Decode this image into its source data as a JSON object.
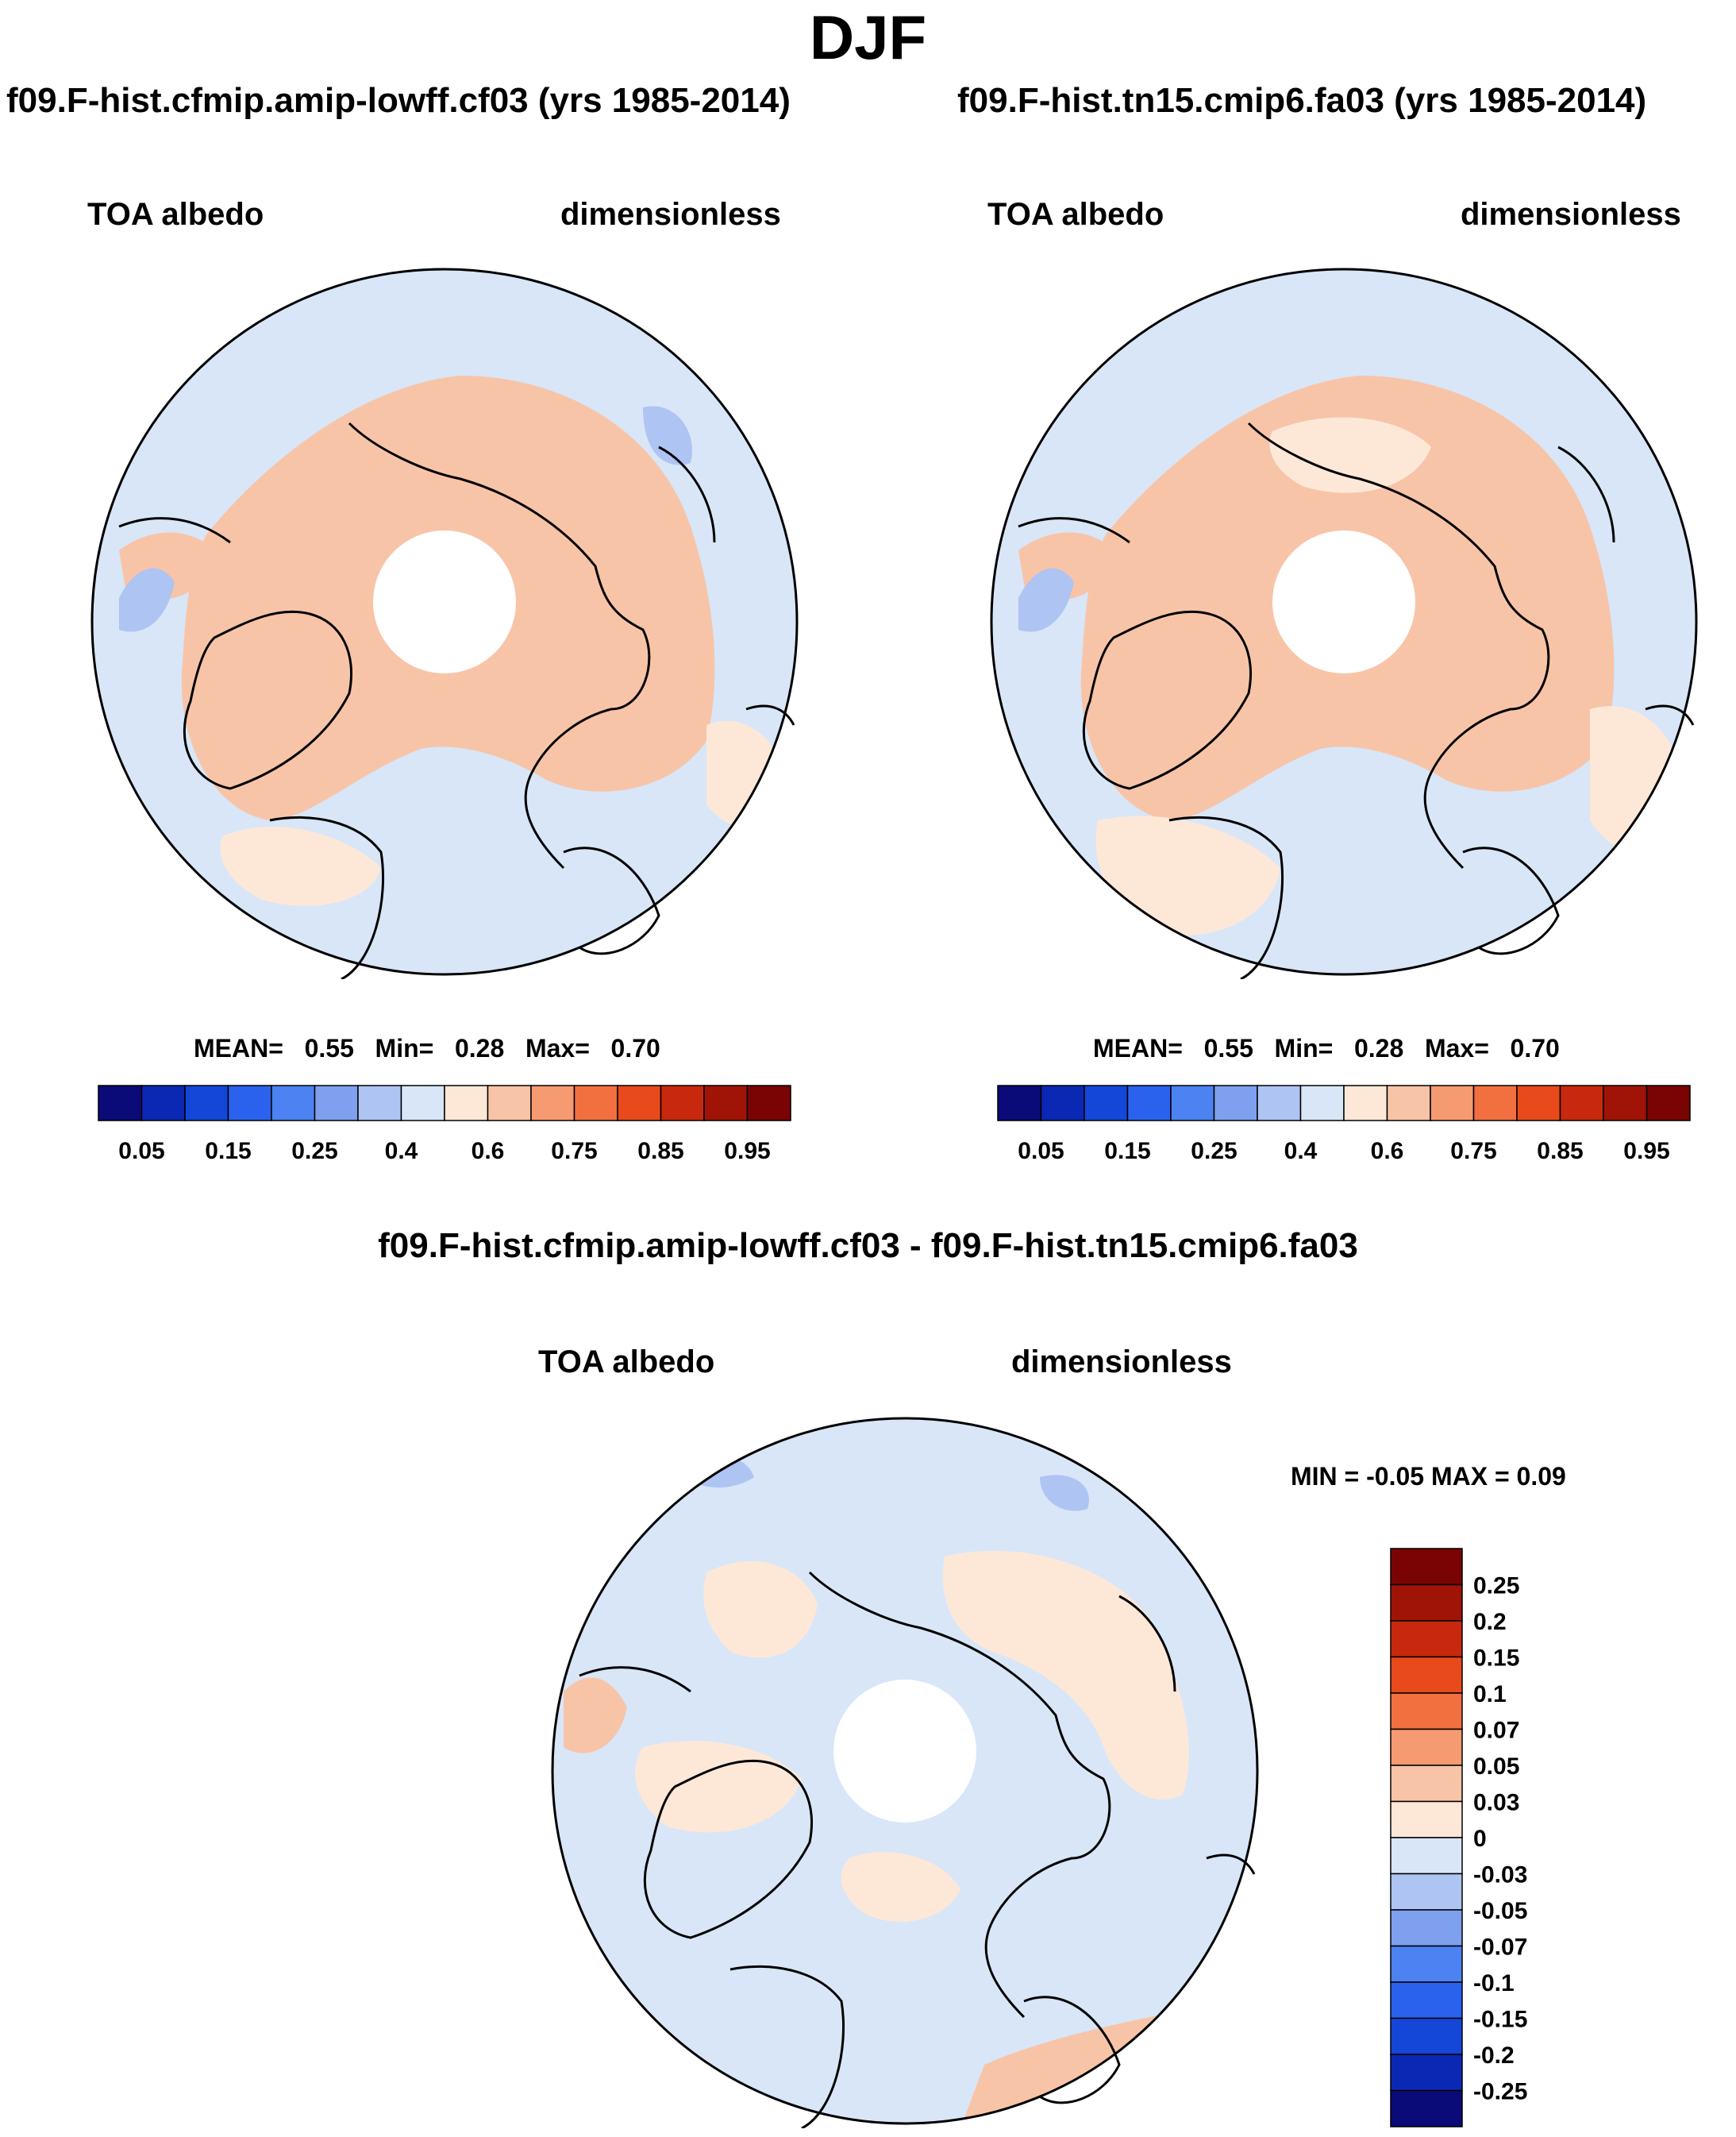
{
  "title": "DJF",
  "panels": [
    {
      "case_title": "f09.F-hist.cfmip.amip-lowff.cf03 (yrs 1985-2014)",
      "variable": "TOA albedo",
      "units": "dimensionless",
      "stats": {
        "mean_label": "MEAN=",
        "mean": "0.55",
        "min_label": "Min=",
        "min": "0.28",
        "max_label": "Max=",
        "max": "0.70"
      }
    },
    {
      "case_title": "f09.F-hist.tn15.cmip6.fa03 (yrs 1985-2014)",
      "variable": "TOA albedo",
      "units": "dimensionless",
      "stats": {
        "mean_label": "MEAN=",
        "mean": "0.55",
        "min_label": "Min=",
        "min": "0.28",
        "max_label": "Max=",
        "max": "0.70"
      }
    }
  ],
  "diff_panel": {
    "title": "f09.F-hist.cfmip.amip-lowff.cf03 - f09.F-hist.tn15.cmip6.fa03",
    "variable": "TOA albedo",
    "units": "dimensionless",
    "stats_text": "MIN =  -0.05 MAX =   0.09"
  },
  "chart_data": [
    {
      "type": "heatmap",
      "projection": "north polar stereographic",
      "title": "f09.F-hist.cfmip.amip-lowff.cf03 (yrs 1985-2014)",
      "variable": "TOA albedo",
      "units": "dimensionless",
      "mean": 0.55,
      "min": 0.28,
      "max": 0.7,
      "colorbar": {
        "orientation": "horizontal",
        "levels": [
          0.05,
          0.1,
          0.15,
          0.2,
          0.25,
          0.3,
          0.4,
          0.5,
          0.6,
          0.7,
          0.75,
          0.8,
          0.85,
          0.9,
          0.95
        ],
        "tick_labels": [
          "0.05",
          "0.15",
          "0.25",
          "0.4",
          "0.6",
          "0.75",
          "0.85",
          "0.95"
        ],
        "colors": [
          "#0a0a78",
          "#0a28b4",
          "#1446d8",
          "#2a62ee",
          "#4c82f2",
          "#7ea0ee",
          "#aec4f2",
          "#d8e6f8",
          "#fde8d8",
          "#f8c4a8",
          "#f69a72",
          "#f27040",
          "#e84a1c",
          "#c8280e",
          "#a01408",
          "#7a0404"
        ]
      }
    },
    {
      "type": "heatmap",
      "projection": "north polar stereographic",
      "title": "f09.F-hist.tn15.cmip6.fa03 (yrs 1985-2014)",
      "variable": "TOA albedo",
      "units": "dimensionless",
      "mean": 0.55,
      "min": 0.28,
      "max": 0.7,
      "colorbar": {
        "orientation": "horizontal",
        "levels": [
          0.05,
          0.1,
          0.15,
          0.2,
          0.25,
          0.3,
          0.4,
          0.5,
          0.6,
          0.7,
          0.75,
          0.8,
          0.85,
          0.9,
          0.95
        ],
        "tick_labels": [
          "0.05",
          "0.15",
          "0.25",
          "0.4",
          "0.6",
          "0.75",
          "0.85",
          "0.95"
        ],
        "colors": [
          "#0a0a78",
          "#0a28b4",
          "#1446d8",
          "#2a62ee",
          "#4c82f2",
          "#7ea0ee",
          "#aec4f2",
          "#d8e6f8",
          "#fde8d8",
          "#f8c4a8",
          "#f69a72",
          "#f27040",
          "#e84a1c",
          "#c8280e",
          "#a01408",
          "#7a0404"
        ]
      }
    },
    {
      "type": "heatmap",
      "projection": "north polar stereographic",
      "title": "f09.F-hist.cfmip.amip-lowff.cf03 - f09.F-hist.tn15.cmip6.fa03",
      "variable": "TOA albedo",
      "units": "dimensionless",
      "min": -0.05,
      "max": 0.09,
      "colorbar": {
        "orientation": "vertical",
        "levels": [
          0.25,
          0.2,
          0.15,
          0.1,
          0.07,
          0.05,
          0.03,
          0,
          -0.03,
          -0.05,
          -0.07,
          -0.1,
          -0.15,
          -0.2,
          -0.25
        ],
        "tick_labels": [
          "0.25",
          "0.2",
          "0.15",
          "0.1",
          "0.07",
          "0.05",
          "0.03",
          "0",
          "-0.03",
          "-0.05",
          "-0.07",
          "-0.1",
          "-0.15",
          "-0.2",
          "-0.25"
        ],
        "colors": [
          "#7a0404",
          "#a01408",
          "#c8280e",
          "#e84a1c",
          "#f27040",
          "#f69a72",
          "#f8c4a8",
          "#fde8d8",
          "#d8e6f8",
          "#aec4f2",
          "#7ea0ee",
          "#4c82f2",
          "#2a62ee",
          "#1446d8",
          "#0a28b4",
          "#0a0a78"
        ]
      }
    }
  ]
}
